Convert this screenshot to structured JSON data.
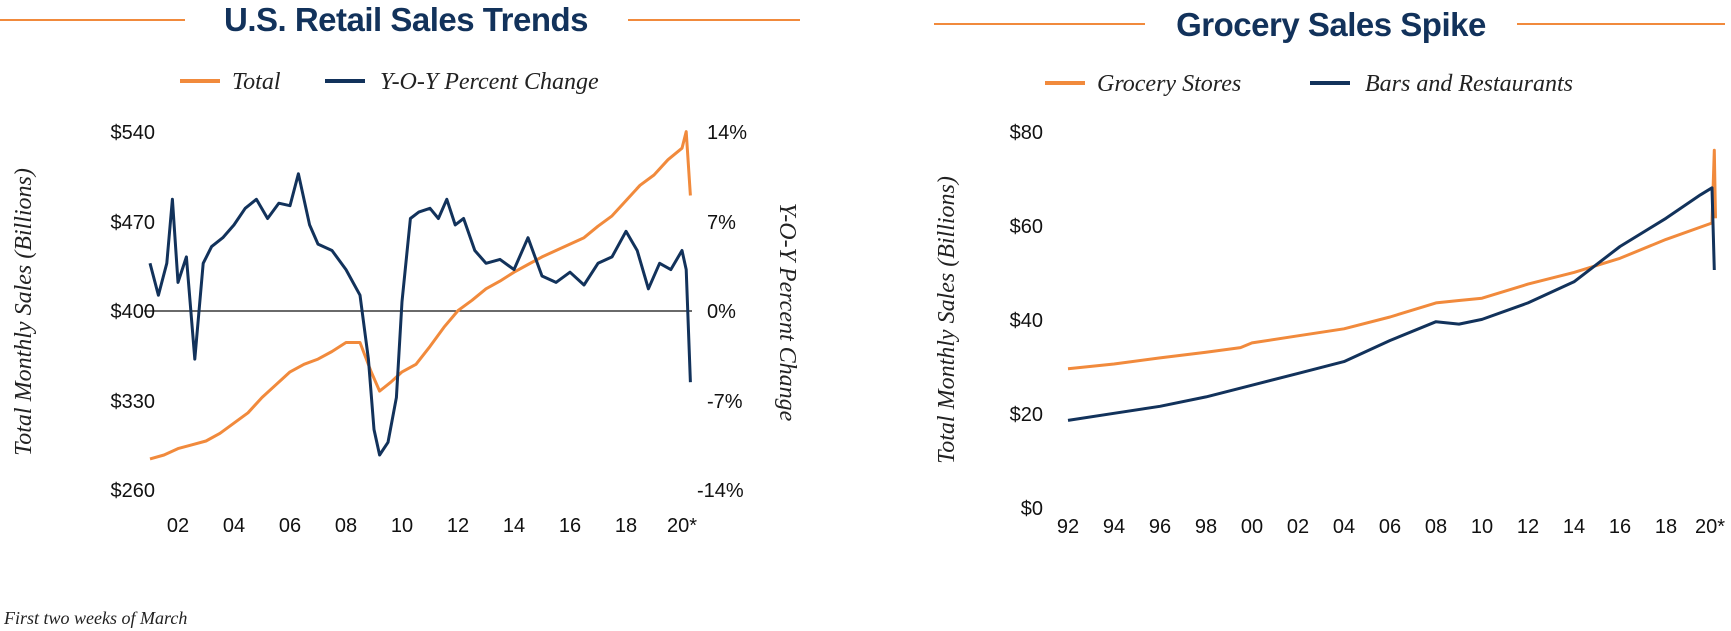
{
  "colors": {
    "orange": "#f18a3c",
    "navy": "#12325b",
    "zero_line": "#111111"
  },
  "footnote": "First two weeks of March",
  "chart_data": [
    {
      "type": "line",
      "title": "U.S. Retail Sales Trends",
      "legend_placement": "top",
      "grid": false,
      "ylabel": "Total Monthly Sales (Billions)",
      "ylabel_right": "Y-O-Y Percent Change",
      "ylim": [
        260,
        540
      ],
      "ylim_right": [
        -14,
        14
      ],
      "yticks": [
        "$540",
        "$470",
        "$400",
        "$330",
        "$260"
      ],
      "yticks_right": [
        "14%",
        "7%",
        "0%",
        "-7%",
        "-14%"
      ],
      "xticks": [
        "02",
        "04",
        "06",
        "08",
        "10",
        "12",
        "14",
        "16",
        "18",
        "20*"
      ],
      "series": [
        {
          "name": "Total",
          "axis": "left",
          "color": "#f18a3c",
          "points": [
            [
              2001.0,
              282
            ],
            [
              2001.5,
              285
            ],
            [
              2002.0,
              290
            ],
            [
              2002.5,
              293
            ],
            [
              2003.0,
              296
            ],
            [
              2003.5,
              302
            ],
            [
              2004.0,
              310
            ],
            [
              2004.5,
              318
            ],
            [
              2005.0,
              330
            ],
            [
              2005.5,
              340
            ],
            [
              2006.0,
              350
            ],
            [
              2006.5,
              356
            ],
            [
              2007.0,
              360
            ],
            [
              2007.5,
              366
            ],
            [
              2008.0,
              373
            ],
            [
              2008.5,
              373
            ],
            [
              2008.9,
              350
            ],
            [
              2009.2,
              335
            ],
            [
              2009.6,
              342
            ],
            [
              2010.0,
              350
            ],
            [
              2010.5,
              356
            ],
            [
              2011.0,
              370
            ],
            [
              2011.5,
              385
            ],
            [
              2012.0,
              398
            ],
            [
              2012.5,
              406
            ],
            [
              2013.0,
              415
            ],
            [
              2013.5,
              421
            ],
            [
              2014.0,
              428
            ],
            [
              2014.5,
              434
            ],
            [
              2015.0,
              440
            ],
            [
              2015.5,
              445
            ],
            [
              2016.0,
              450
            ],
            [
              2016.5,
              455
            ],
            [
              2017.0,
              464
            ],
            [
              2017.5,
              472
            ],
            [
              2018.0,
              484
            ],
            [
              2018.5,
              496
            ],
            [
              2019.0,
              504
            ],
            [
              2019.5,
              516
            ],
            [
              2020.0,
              525
            ],
            [
              2020.15,
              538
            ],
            [
              2020.3,
              488
            ]
          ]
        },
        {
          "name": "Y-O-Y Percent Change",
          "axis": "right",
          "color": "#12325b",
          "points": [
            [
              2001.0,
              3.5
            ],
            [
              2001.3,
              1.0
            ],
            [
              2001.6,
              3.5
            ],
            [
              2001.8,
              8.5
            ],
            [
              2002.0,
              2.0
            ],
            [
              2002.3,
              4.0
            ],
            [
              2002.6,
              -4.0
            ],
            [
              2002.9,
              3.5
            ],
            [
              2003.2,
              4.8
            ],
            [
              2003.6,
              5.5
            ],
            [
              2004.0,
              6.5
            ],
            [
              2004.4,
              7.8
            ],
            [
              2004.8,
              8.5
            ],
            [
              2005.2,
              7.0
            ],
            [
              2005.6,
              8.2
            ],
            [
              2006.0,
              8.0
            ],
            [
              2006.3,
              10.5
            ],
            [
              2006.7,
              6.5
            ],
            [
              2007.0,
              5.0
            ],
            [
              2007.5,
              4.5
            ],
            [
              2008.0,
              3.0
            ],
            [
              2008.5,
              1.0
            ],
            [
              2008.8,
              -4.0
            ],
            [
              2009.0,
              -9.5
            ],
            [
              2009.2,
              -11.5
            ],
            [
              2009.5,
              -10.5
            ],
            [
              2009.8,
              -7.0
            ],
            [
              2010.0,
              0.5
            ],
            [
              2010.3,
              7.0
            ],
            [
              2010.6,
              7.5
            ],
            [
              2011.0,
              7.8
            ],
            [
              2011.3,
              7.0
            ],
            [
              2011.6,
              8.5
            ],
            [
              2011.9,
              6.5
            ],
            [
              2012.2,
              7.0
            ],
            [
              2012.6,
              4.5
            ],
            [
              2013.0,
              3.5
            ],
            [
              2013.5,
              3.8
            ],
            [
              2014.0,
              3.0
            ],
            [
              2014.5,
              5.5
            ],
            [
              2015.0,
              2.5
            ],
            [
              2015.5,
              2.0
            ],
            [
              2016.0,
              2.8
            ],
            [
              2016.5,
              1.8
            ],
            [
              2017.0,
              3.5
            ],
            [
              2017.5,
              4.0
            ],
            [
              2018.0,
              6.0
            ],
            [
              2018.4,
              4.5
            ],
            [
              2018.8,
              1.5
            ],
            [
              2019.2,
              3.5
            ],
            [
              2019.6,
              3.0
            ],
            [
              2020.0,
              4.5
            ],
            [
              2020.15,
              3.0
            ],
            [
              2020.3,
              -5.8
            ]
          ]
        }
      ]
    },
    {
      "type": "line",
      "title": "Grocery Sales Spike",
      "legend_placement": "top",
      "grid": false,
      "ylabel": "Total Monthly Sales (Billions)",
      "ylim": [
        0,
        80
      ],
      "yticks": [
        "$80",
        "$60",
        "$40",
        "$20",
        "$0"
      ],
      "xticks": [
        "92",
        "94",
        "96",
        "98",
        "00",
        "02",
        "04",
        "06",
        "08",
        "10",
        "12",
        "14",
        "16",
        "18",
        "20*"
      ],
      "series": [
        {
          "name": "Grocery Stores",
          "color": "#f18a3c",
          "points": [
            [
              1992.0,
              29.0
            ],
            [
              1994.0,
              30.0
            ],
            [
              1996.0,
              31.3
            ],
            [
              1998.0,
              32.5
            ],
            [
              1999.5,
              33.5
            ],
            [
              2000.0,
              34.5
            ],
            [
              2002.0,
              36.0
            ],
            [
              2004.0,
              37.5
            ],
            [
              2006.0,
              40.0
            ],
            [
              2008.0,
              43.0
            ],
            [
              2009.0,
              43.5
            ],
            [
              2010.0,
              44.0
            ],
            [
              2012.0,
              47.0
            ],
            [
              2014.0,
              49.5
            ],
            [
              2016.0,
              52.5
            ],
            [
              2018.0,
              56.5
            ],
            [
              2020.0,
              60.0
            ],
            [
              2020.1,
              75.5
            ],
            [
              2020.15,
              61.0
            ]
          ]
        },
        {
          "name": "Bars and Restaurants",
          "color": "#12325b",
          "points": [
            [
              1992.0,
              18.0
            ],
            [
              1994.0,
              19.5
            ],
            [
              1996.0,
              21.0
            ],
            [
              1998.0,
              23.0
            ],
            [
              2000.0,
              25.5
            ],
            [
              2002.0,
              28.0
            ],
            [
              2004.0,
              30.5
            ],
            [
              2006.0,
              35.0
            ],
            [
              2008.0,
              39.0
            ],
            [
              2009.0,
              38.5
            ],
            [
              2010.0,
              39.5
            ],
            [
              2012.0,
              43.0
            ],
            [
              2014.0,
              47.5
            ],
            [
              2016.0,
              55.0
            ],
            [
              2018.0,
              61.0
            ],
            [
              2019.5,
              66.0
            ],
            [
              2020.0,
              67.5
            ],
            [
              2020.1,
              50.0
            ]
          ]
        }
      ]
    }
  ]
}
